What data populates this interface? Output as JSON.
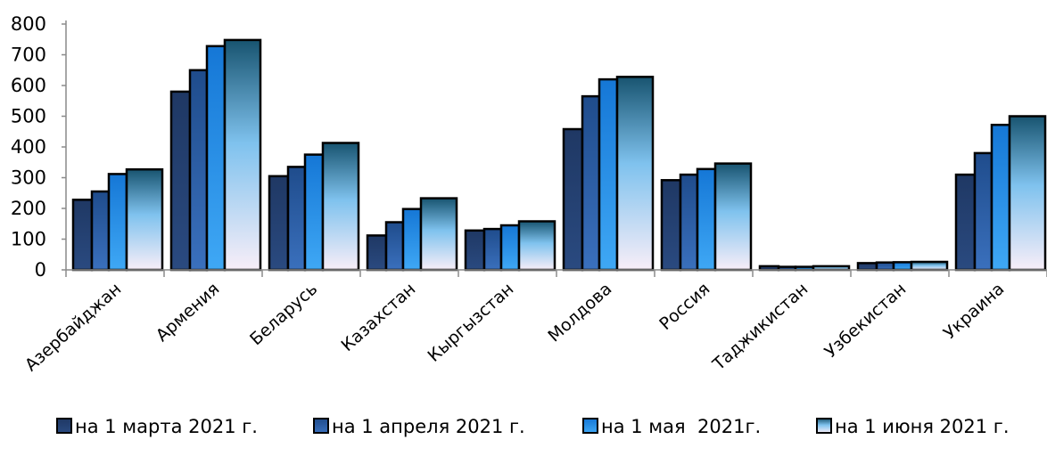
{
  "chart_data": {
    "type": "bar",
    "categories": [
      "Азербайджан",
      "Армения",
      "Беларусь",
      "Казахстан",
      "Кыргызстан",
      "Молдова",
      "Россия",
      "Таджикистан",
      "Узбекистан",
      "Украина"
    ],
    "series": [
      {
        "name": "на 1 марта 2021 г.",
        "values": [
          228,
          580,
          305,
          112,
          128,
          458,
          292,
          12,
          22,
          310
        ]
      },
      {
        "name": "на 1 апреля 2021 г.",
        "values": [
          255,
          650,
          335,
          155,
          133,
          565,
          310,
          10,
          24,
          380
        ]
      },
      {
        "name": "на 1 мая  2021г.",
        "values": [
          312,
          728,
          375,
          198,
          145,
          620,
          328,
          10,
          25,
          472
        ]
      },
      {
        "name": "на 1 июня 2021 г.",
        "values": [
          327,
          748,
          413,
          233,
          158,
          628,
          346,
          12,
          26,
          500
        ]
      }
    ],
    "yticks": [
      "0",
      "100",
      "200",
      "300",
      "400",
      "500",
      "600",
      "700",
      "800"
    ],
    "ylim": [
      0,
      800
    ],
    "grid": false,
    "legend_position": "bottom",
    "colors": {
      "series1": "#1f3864",
      "series2": "#2e5ea8",
      "series3": "#1e90e8",
      "series4_top": "#1c5a78",
      "series4_bottom": "#f6eef8",
      "outline": "#000000"
    }
  }
}
